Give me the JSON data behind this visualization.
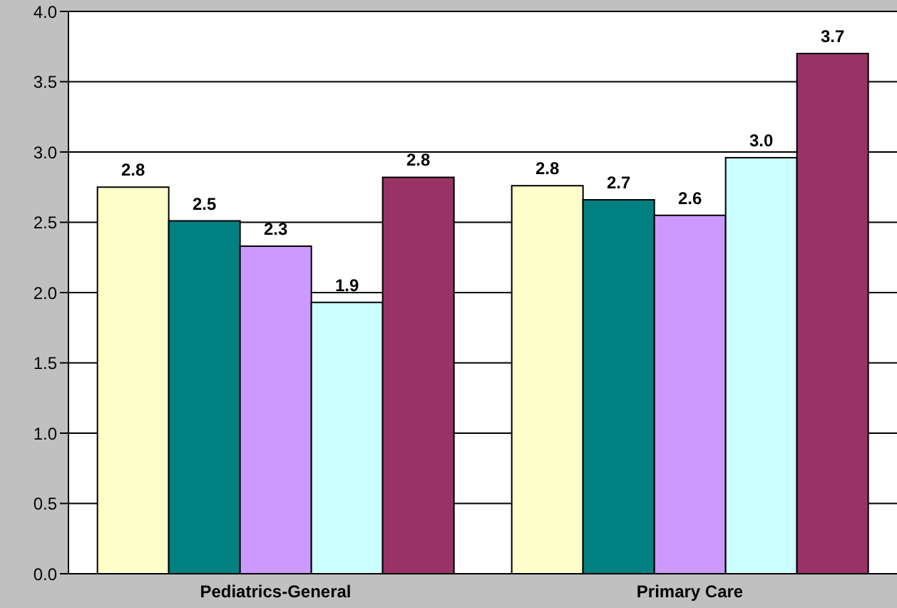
{
  "chart_data": {
    "type": "bar",
    "categories": [
      "Pediatrics-General",
      "Primary Care"
    ],
    "series": [
      {
        "color": "#ffffcc",
        "values": [
          2.75,
          2.76
        ],
        "value_labels": [
          "2.8",
          "2.8"
        ]
      },
      {
        "color": "#008080",
        "values": [
          2.51,
          2.66
        ],
        "value_labels": [
          "2.5",
          "2.7"
        ]
      },
      {
        "color": "#cc99ff",
        "values": [
          2.33,
          2.55
        ],
        "value_labels": [
          "2.3",
          "2.6"
        ]
      },
      {
        "color": "#ccffff",
        "values": [
          1.93,
          2.96
        ],
        "value_labels": [
          "1.9",
          "3.0"
        ]
      },
      {
        "color": "#993366",
        "values": [
          2.82,
          3.7
        ],
        "value_labels": [
          "2.8",
          "3.7"
        ]
      }
    ],
    "ylim": [
      0,
      4
    ],
    "yticks": [
      {
        "value": 0,
        "label": "0.0"
      },
      {
        "value": 0.5,
        "label": "0.5"
      },
      {
        "value": 1,
        "label": "1.0"
      },
      {
        "value": 1.5,
        "label": "1.5"
      },
      {
        "value": 2,
        "label": "2.0"
      },
      {
        "value": 2.5,
        "label": "2.5"
      },
      {
        "value": 3,
        "label": "3.0"
      },
      {
        "value": 3.5,
        "label": "3.5"
      },
      {
        "value": 4,
        "label": "4.0"
      }
    ],
    "grid": "y",
    "legend": false
  }
}
